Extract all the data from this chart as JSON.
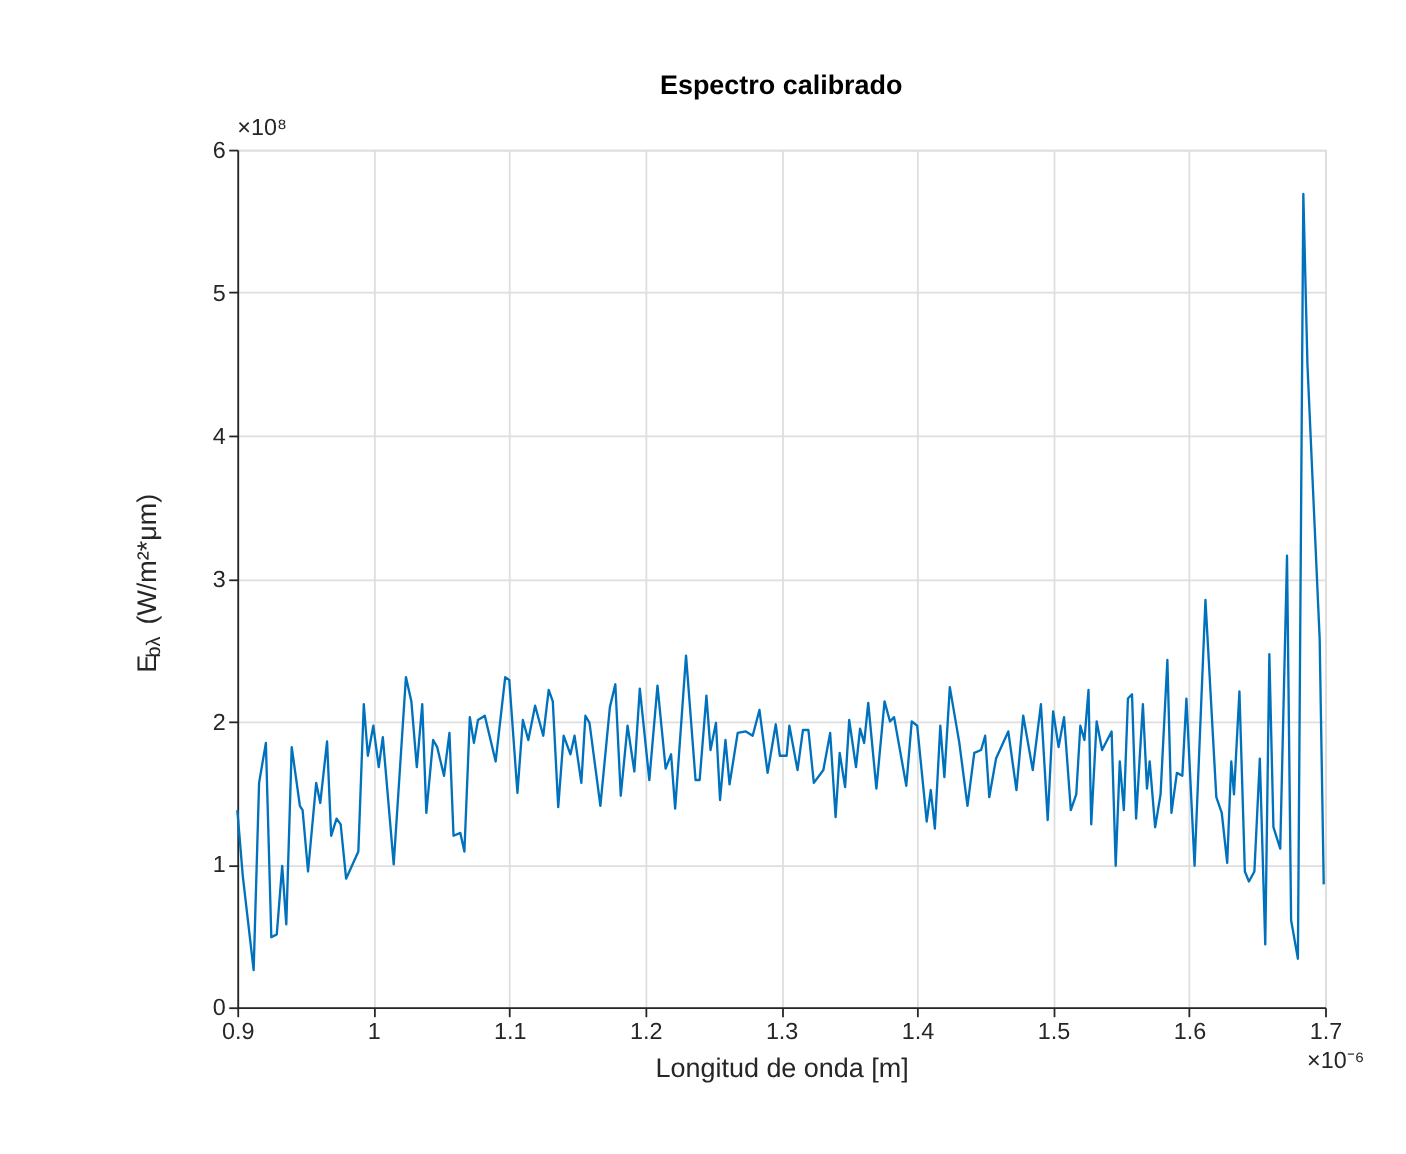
{
  "chart_data": {
    "type": "line",
    "title": "Espectro calibrado",
    "xlabel": "Longitud de onda [m]",
    "ylabel": "E$_{bλ}$ (W/m²*μm)",
    "annotations": [
      "×10⁸",
      "×10⁻⁶"
    ],
    "xlim": [
      0.9,
      1.7
    ],
    "xticks": [
      0.9,
      1,
      1.1,
      1.2,
      1.3,
      1.4,
      1.5,
      1.6,
      1.7
    ],
    "ylim": [
      0,
      6
    ],
    "yticks": [
      0,
      1,
      2,
      3,
      4,
      5,
      6
    ],
    "grid": true,
    "marker": "none",
    "line_style": "solid",
    "series": [
      {
        "color": "#0072bd",
        "x": [
          0.9,
          0.904,
          0.912,
          0.916,
          0.921,
          0.925,
          0.929,
          0.933,
          0.936,
          0.94,
          0.946,
          0.948,
          0.952,
          0.958,
          0.961,
          0.966,
          0.969,
          0.973,
          0.976,
          0.98,
          0.989,
          0.993,
          0.996,
          1.0,
          1.004,
          1.007,
          1.015,
          1.024,
          1.028,
          1.032,
          1.036,
          1.039,
          1.044,
          1.047,
          1.052,
          1.056,
          1.059,
          1.064,
          1.067,
          1.071,
          1.074,
          1.077,
          1.082,
          1.09,
          1.097,
          1.1,
          1.106,
          1.11,
          1.114,
          1.119,
          1.125,
          1.129,
          1.132,
          1.136,
          1.14,
          1.145,
          1.148,
          1.153,
          1.156,
          1.159,
          1.167,
          1.174,
          1.178,
          1.182,
          1.187,
          1.192,
          1.196,
          1.203,
          1.209,
          1.215,
          1.219,
          1.222,
          1.23,
          1.237,
          1.24,
          1.245,
          1.248,
          1.252,
          1.255,
          1.259,
          1.262,
          1.268,
          1.274,
          1.279,
          1.284,
          1.29,
          1.296,
          1.299,
          1.304,
          1.306,
          1.312,
          1.316,
          1.32,
          1.324,
          1.331,
          1.336,
          1.34,
          1.343,
          1.347,
          1.35,
          1.355,
          1.358,
          1.361,
          1.364,
          1.37,
          1.376,
          1.38,
          1.383,
          1.392,
          1.396,
          1.4,
          1.407,
          1.41,
          1.413,
          1.417,
          1.42,
          1.424,
          1.431,
          1.437,
          1.442,
          1.447,
          1.45,
          1.453,
          1.458,
          1.467,
          1.473,
          1.478,
          1.485,
          1.491,
          1.496,
          1.5,
          1.504,
          1.508,
          1.513,
          1.517,
          1.52,
          1.523,
          1.526,
          1.528,
          1.532,
          1.536,
          1.543,
          1.546,
          1.549,
          1.552,
          1.555,
          1.558,
          1.561,
          1.566,
          1.569,
          1.571,
          1.575,
          1.579,
          1.584,
          1.587,
          1.591,
          1.595,
          1.598,
          1.604,
          1.612,
          1.62,
          1.624,
          1.628,
          1.631,
          1.633,
          1.637,
          1.641,
          1.644,
          1.648,
          1.652,
          1.656,
          1.659,
          1.662,
          1.667,
          1.672,
          1.675,
          1.68,
          1.684,
          1.687,
          1.696,
          1.699
        ],
        "values": [
          1.38,
          0.92,
          0.26,
          1.57,
          1.85,
          0.49,
          0.51,
          0.99,
          0.58,
          1.82,
          1.41,
          1.38,
          0.95,
          1.57,
          1.43,
          1.86,
          1.2,
          1.32,
          1.28,
          0.9,
          1.09,
          2.12,
          1.76,
          1.97,
          1.68,
          1.89,
          1.0,
          2.31,
          2.14,
          1.68,
          2.12,
          1.36,
          1.87,
          1.82,
          1.62,
          1.92,
          1.2,
          1.22,
          1.09,
          2.03,
          1.85,
          2.01,
          2.04,
          1.72,
          2.31,
          2.29,
          1.5,
          2.01,
          1.87,
          2.11,
          1.9,
          2.22,
          2.14,
          1.4,
          1.9,
          1.77,
          1.9,
          1.57,
          2.04,
          1.99,
          1.41,
          2.1,
          2.26,
          1.48,
          1.97,
          1.65,
          2.23,
          1.59,
          2.25,
          1.67,
          1.77,
          1.39,
          2.46,
          1.59,
          1.59,
          2.18,
          1.8,
          1.99,
          1.45,
          1.87,
          1.56,
          1.92,
          1.93,
          1.9,
          2.08,
          1.64,
          1.98,
          1.76,
          1.76,
          1.97,
          1.66,
          1.94,
          1.94,
          1.57,
          1.66,
          1.92,
          1.33,
          1.78,
          1.54,
          2.01,
          1.68,
          1.95,
          1.85,
          2.13,
          1.53,
          2.14,
          2.0,
          2.03,
          1.55,
          2.0,
          1.97,
          1.3,
          1.52,
          1.25,
          1.97,
          1.61,
          2.24,
          1.85,
          1.41,
          1.78,
          1.8,
          1.9,
          1.47,
          1.74,
          1.93,
          1.52,
          2.04,
          1.66,
          2.12,
          1.31,
          2.07,
          1.82,
          2.03,
          1.38,
          1.49,
          1.97,
          1.87,
          2.22,
          1.28,
          2.0,
          1.8,
          1.93,
          0.99,
          1.72,
          1.38,
          2.16,
          2.19,
          1.32,
          2.12,
          1.53,
          1.72,
          1.26,
          1.49,
          2.43,
          1.36,
          1.64,
          1.62,
          2.16,
          0.99,
          2.85,
          1.47,
          1.36,
          1.01,
          1.72,
          1.49,
          2.21,
          0.95,
          0.88,
          0.95,
          1.74,
          0.44,
          2.47,
          1.26,
          1.11,
          3.16,
          0.61,
          0.34,
          5.69,
          4.5,
          2.58,
          0.86
        ]
      }
    ]
  }
}
